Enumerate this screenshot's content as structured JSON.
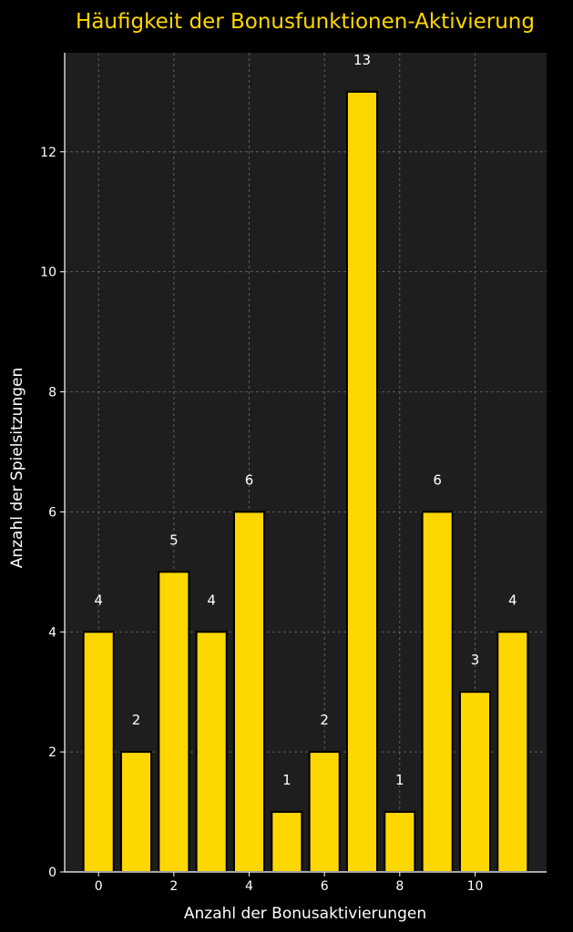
{
  "chart_data": {
    "type": "bar",
    "title": "Häufigkeit der Bonusfunktionen-Aktivierung",
    "xlabel": "Anzahl der Bonusaktivierungen",
    "ylabel": "Anzahl der Spielsitzungen",
    "categories": [
      0,
      1,
      2,
      3,
      4,
      5,
      6,
      7,
      8,
      9,
      10,
      11
    ],
    "values": [
      4,
      2,
      5,
      4,
      6,
      1,
      2,
      13,
      1,
      6,
      3,
      4
    ],
    "xticks": [
      0,
      2,
      4,
      6,
      8,
      10
    ],
    "yticks": [
      0,
      2,
      4,
      6,
      8,
      10,
      12
    ],
    "xlim": [
      -0.9,
      11.9
    ],
    "ylim": [
      0,
      13.65
    ],
    "grid": true,
    "colors": {
      "background": "#000000",
      "plot_area": "#1e1e1e",
      "bar": "#ffd700",
      "bar_edge": "#000000",
      "title": "#ffd700",
      "text": "#ffffff",
      "grid": "#6e6e6e",
      "axis": "#ffffff"
    }
  }
}
